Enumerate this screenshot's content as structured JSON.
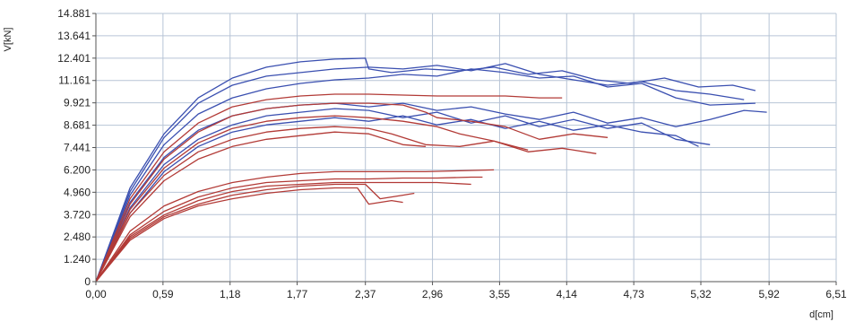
{
  "chart_data": {
    "type": "line",
    "title": "",
    "xlabel": "d[cm]",
    "ylabel": "V[kN]",
    "xlim": [
      0,
      6.51
    ],
    "ylim": [
      0,
      14.881
    ],
    "grid": true,
    "x_ticks": [
      "0,00",
      "0,59",
      "1,18",
      "1,77",
      "2,37",
      "2,96",
      "3,55",
      "4,14",
      "4,73",
      "5,32",
      "5,92",
      "6,51"
    ],
    "y_ticks": [
      "0",
      "1.240",
      "2.480",
      "3.720",
      "4.960",
      "6.200",
      "7.441",
      "8.681",
      "9.921",
      "11.161",
      "12.401",
      "13.641",
      "14.881"
    ],
    "colors": {
      "blue": "#3a4fb0",
      "red": "#b23a36",
      "grid": "#b7c4d6"
    },
    "series": [
      {
        "color": "blue",
        "x": [
          0,
          0.3,
          0.6,
          0.9,
          1.2,
          1.5,
          1.8,
          2.1,
          2.37,
          2.4,
          2.6,
          2.9,
          3.2,
          3.5,
          3.8,
          4.1,
          4.4,
          4.7,
          5.0,
          5.3,
          5.6,
          5.8
        ],
        "y": [
          0,
          5.2,
          8.2,
          10.2,
          11.3,
          11.9,
          12.2,
          12.35,
          12.4,
          11.8,
          11.6,
          11.8,
          11.7,
          11.9,
          11.5,
          11.7,
          11.2,
          11.0,
          11.3,
          10.8,
          10.9,
          10.6
        ]
      },
      {
        "color": "blue",
        "x": [
          0,
          0.3,
          0.6,
          0.9,
          1.2,
          1.5,
          1.8,
          2.1,
          2.4,
          2.7,
          3.0,
          3.3,
          3.6,
          3.9,
          4.2,
          4.5,
          4.8,
          5.1,
          5.4,
          5.7
        ],
        "y": [
          0,
          5.0,
          8.0,
          9.9,
          10.9,
          11.4,
          11.6,
          11.8,
          11.9,
          11.8,
          12.0,
          11.7,
          12.1,
          11.5,
          11.2,
          10.9,
          11.1,
          10.6,
          10.4,
          10.1
        ]
      },
      {
        "color": "blue",
        "x": [
          0,
          0.3,
          0.6,
          0.9,
          1.2,
          1.5,
          1.8,
          2.1,
          2.4,
          2.7,
          3.0,
          3.3,
          3.6,
          3.9,
          4.2,
          4.5,
          4.8,
          5.1,
          5.4,
          5.8
        ],
        "y": [
          0,
          4.8,
          7.6,
          9.3,
          10.2,
          10.7,
          11.0,
          11.2,
          11.3,
          11.5,
          11.4,
          11.8,
          11.6,
          11.3,
          11.4,
          10.8,
          11.0,
          10.2,
          9.8,
          9.9
        ]
      },
      {
        "color": "blue",
        "x": [
          0,
          0.3,
          0.6,
          0.9,
          1.2,
          1.5,
          1.8,
          2.1,
          2.4,
          2.7,
          3.0,
          3.3,
          3.6,
          3.9,
          4.2,
          4.5,
          4.8,
          5.1,
          5.4,
          5.7,
          5.9
        ],
        "y": [
          0,
          4.4,
          6.9,
          8.4,
          9.2,
          9.6,
          9.8,
          9.9,
          9.7,
          9.9,
          9.5,
          9.7,
          9.3,
          9.0,
          9.4,
          8.8,
          9.1,
          8.6,
          9.0,
          9.5,
          9.4
        ]
      },
      {
        "color": "blue",
        "x": [
          0,
          0.3,
          0.6,
          0.9,
          1.2,
          1.5,
          1.8,
          2.1,
          2.4,
          2.7,
          3.0,
          3.3,
          3.6,
          3.9,
          4.2,
          4.5,
          4.8,
          5.1,
          5.4
        ],
        "y": [
          0,
          4.1,
          6.5,
          7.9,
          8.7,
          9.2,
          9.4,
          9.6,
          9.5,
          9.1,
          9.4,
          8.8,
          9.2,
          8.6,
          9.0,
          8.5,
          8.8,
          7.9,
          7.6
        ]
      },
      {
        "color": "blue",
        "x": [
          0,
          0.3,
          0.6,
          0.9,
          1.2,
          1.5,
          1.8,
          2.1,
          2.4,
          2.7,
          3.0,
          3.3,
          3.6,
          3.9,
          4.2,
          4.5,
          4.8,
          5.1,
          5.3
        ],
        "y": [
          0,
          3.8,
          6.1,
          7.5,
          8.3,
          8.7,
          8.9,
          9.1,
          8.9,
          9.2,
          8.7,
          9.0,
          8.5,
          8.9,
          8.4,
          8.7,
          8.3,
          8.1,
          7.5
        ]
      },
      {
        "color": "red",
        "x": [
          0,
          0.3,
          0.6,
          0.9,
          1.2,
          1.5,
          1.8,
          2.1,
          2.4,
          2.7,
          3.0,
          3.3,
          3.6,
          3.9,
          4.1
        ],
        "y": [
          0,
          4.6,
          7.2,
          8.8,
          9.7,
          10.1,
          10.3,
          10.4,
          10.4,
          10.35,
          10.3,
          10.3,
          10.3,
          10.2,
          10.2
        ]
      },
      {
        "color": "red",
        "x": [
          0,
          0.3,
          0.6,
          0.9,
          1.2,
          1.5,
          1.8,
          2.1,
          2.4,
          2.7,
          2.9,
          3.0,
          3.3,
          3.6,
          3.9,
          4.2,
          4.5
        ],
        "y": [
          0,
          4.3,
          6.8,
          8.3,
          9.2,
          9.6,
          9.8,
          9.9,
          9.9,
          9.8,
          9.4,
          9.1,
          8.9,
          8.6,
          7.9,
          8.2,
          8.0
        ]
      },
      {
        "color": "red",
        "x": [
          0,
          0.3,
          0.6,
          0.9,
          1.2,
          1.5,
          1.8,
          2.1,
          2.4,
          2.7,
          3.0,
          3.2,
          3.5,
          3.8,
          4.1,
          4.4
        ],
        "y": [
          0,
          4.0,
          6.3,
          7.7,
          8.5,
          8.9,
          9.1,
          9.2,
          9.1,
          8.9,
          8.6,
          8.2,
          7.8,
          7.2,
          7.4,
          7.1
        ]
      },
      {
        "color": "red",
        "x": [
          0,
          0.3,
          0.6,
          0.9,
          1.2,
          1.5,
          1.8,
          2.1,
          2.4,
          2.6,
          2.9,
          3.2,
          3.5,
          3.8
        ],
        "y": [
          0,
          3.8,
          5.9,
          7.2,
          7.9,
          8.3,
          8.5,
          8.6,
          8.5,
          8.2,
          7.6,
          7.5,
          7.8,
          7.3
        ]
      },
      {
        "color": "red",
        "x": [
          0,
          0.3,
          0.6,
          0.9,
          1.2,
          1.5,
          1.8,
          2.1,
          2.4,
          2.7,
          2.9
        ],
        "y": [
          0,
          3.6,
          5.6,
          6.8,
          7.5,
          7.9,
          8.1,
          8.3,
          8.2,
          7.6,
          7.5
        ]
      },
      {
        "color": "red",
        "x": [
          0,
          0.3,
          0.6,
          0.9,
          1.2,
          1.5,
          1.8,
          2.1,
          2.37,
          2.6,
          2.9,
          3.2,
          3.5
        ],
        "y": [
          0,
          2.8,
          4.2,
          5.0,
          5.5,
          5.8,
          6.0,
          6.1,
          6.1,
          6.1,
          6.1,
          6.15,
          6.2
        ]
      },
      {
        "color": "red",
        "x": [
          0,
          0.3,
          0.6,
          0.9,
          1.2,
          1.5,
          1.8,
          2.1,
          2.4,
          2.7,
          3.0,
          3.3,
          3.4
        ],
        "y": [
          0,
          2.6,
          3.9,
          4.7,
          5.2,
          5.5,
          5.6,
          5.7,
          5.7,
          5.75,
          5.75,
          5.8,
          5.8
        ]
      },
      {
        "color": "red",
        "x": [
          0,
          0.3,
          0.6,
          0.9,
          1.2,
          1.5,
          1.8,
          2.1,
          2.4,
          2.7,
          3.0,
          3.3
        ],
        "y": [
          0,
          2.5,
          3.7,
          4.5,
          5.0,
          5.3,
          5.4,
          5.5,
          5.5,
          5.5,
          5.5,
          5.4
        ]
      },
      {
        "color": "red",
        "x": [
          0,
          0.3,
          0.6,
          0.9,
          1.2,
          1.5,
          1.8,
          2.1,
          2.37,
          2.5,
          2.7,
          2.8
        ],
        "y": [
          0,
          2.4,
          3.6,
          4.3,
          4.8,
          5.1,
          5.3,
          5.4,
          5.4,
          4.6,
          4.8,
          4.9
        ]
      },
      {
        "color": "red",
        "x": [
          0,
          0.3,
          0.6,
          0.9,
          1.2,
          1.5,
          1.8,
          2.1,
          2.3,
          2.4,
          2.6,
          2.7
        ],
        "y": [
          0,
          2.3,
          3.5,
          4.2,
          4.6,
          4.9,
          5.1,
          5.2,
          5.2,
          4.3,
          4.5,
          4.4
        ]
      }
    ]
  }
}
